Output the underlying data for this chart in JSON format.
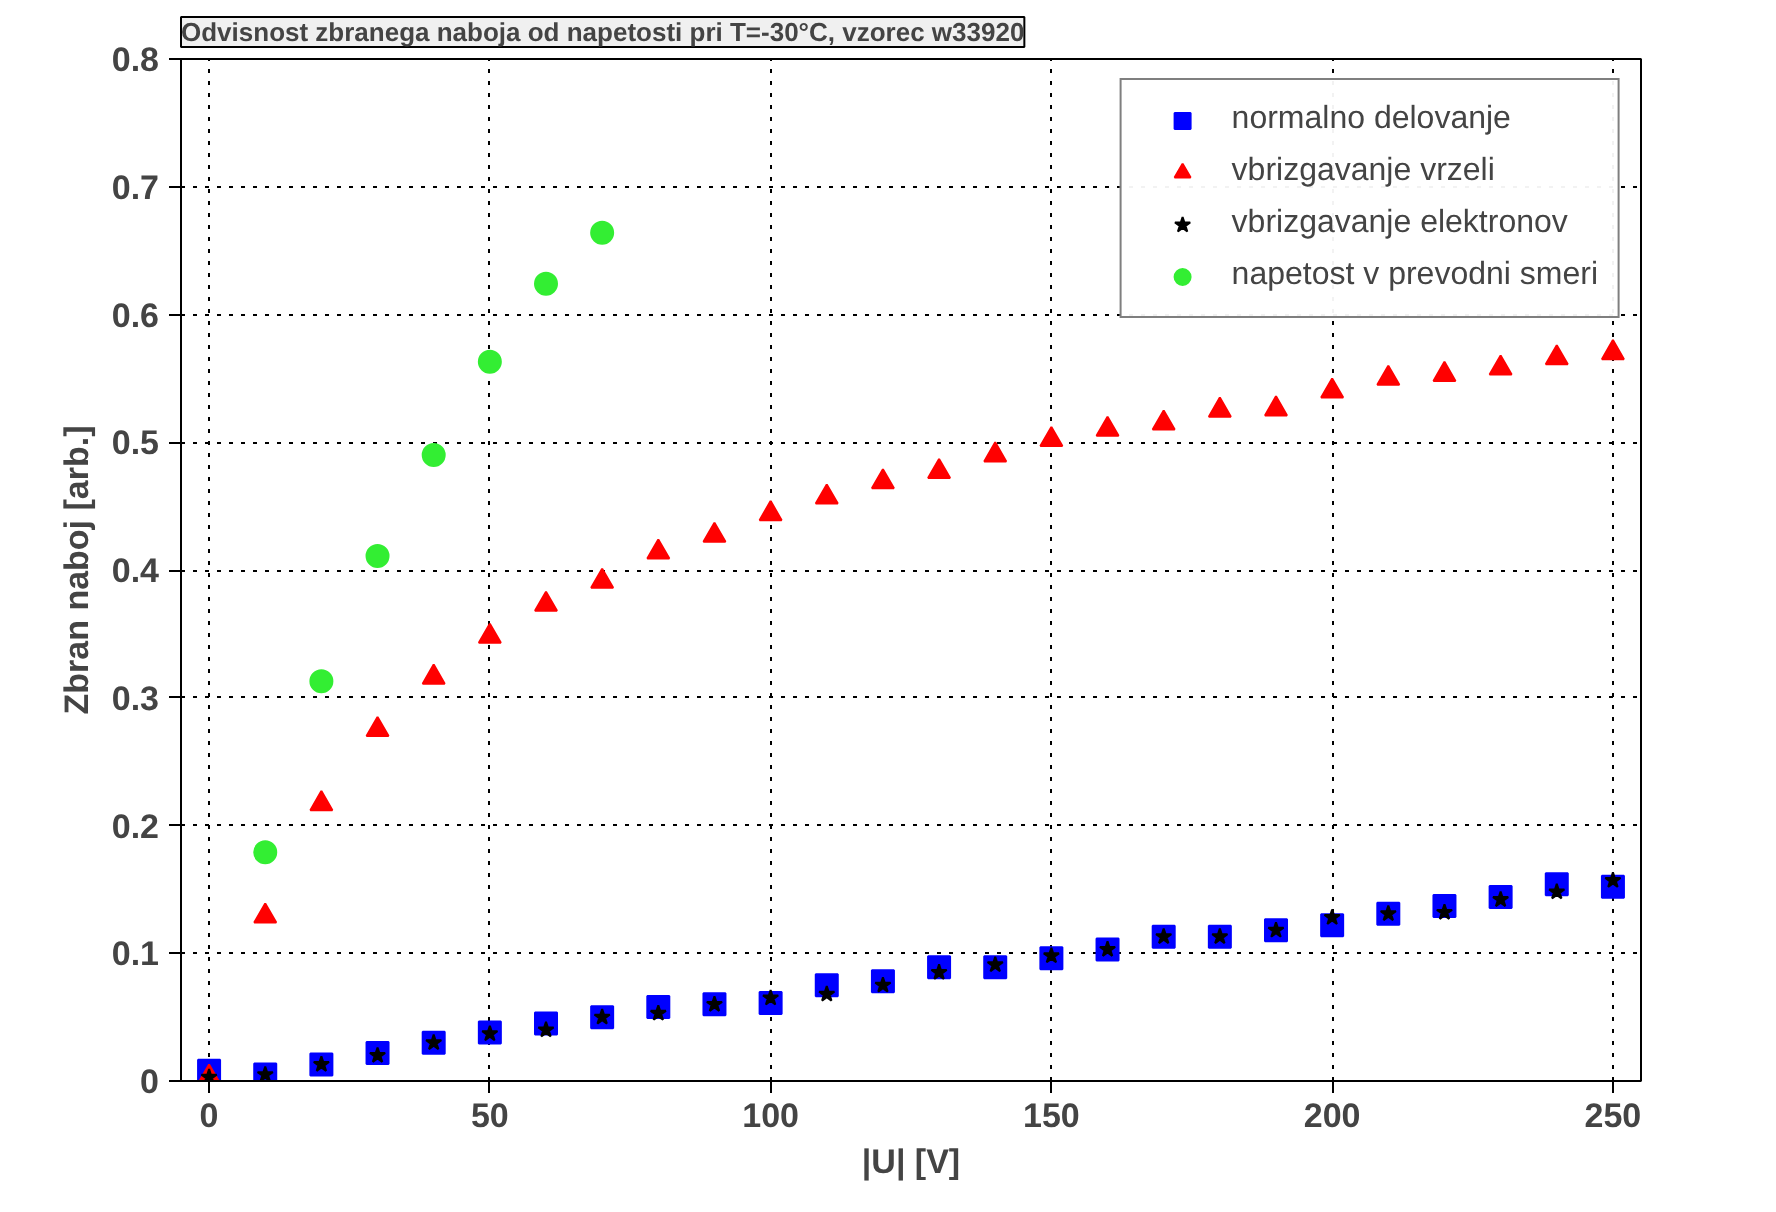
{
  "chart_data": {
    "type": "scatter",
    "title": "Odvisnost zbranega naboja od napetosti pri T=-30°C, vzorec w33920",
    "xlabel": "|U| [V]",
    "ylabel": "Zbran naboj [arb.]",
    "x": [
      0,
      10,
      20,
      30,
      40,
      50,
      60,
      70,
      80,
      90,
      100,
      110,
      120,
      130,
      140,
      150,
      160,
      170,
      180,
      190,
      200,
      210,
      220,
      230,
      240,
      250
    ],
    "series": [
      {
        "name": "normalno delovanje",
        "color": "#0000ff",
        "marker": "square",
        "values": [
          0.008,
          0.005,
          0.013,
          0.022,
          0.03,
          0.038,
          0.045,
          0.05,
          0.058,
          0.06,
          0.061,
          0.075,
          0.078,
          0.089,
          0.089,
          0.096,
          0.103,
          0.113,
          0.113,
          0.118,
          0.122,
          0.131,
          0.137,
          0.144,
          0.154,
          0.152
        ]
      },
      {
        "name": "vbrizgavanje vrzeli",
        "color": "#ff0000",
        "marker": "triangle",
        "values": [
          0.003,
          0.129,
          0.217,
          0.275,
          0.316,
          0.348,
          0.373,
          0.391,
          0.414,
          0.427,
          0.444,
          0.457,
          0.469,
          0.477,
          0.49,
          0.502,
          0.51,
          0.515,
          0.525,
          0.526,
          0.54,
          0.55,
          0.553,
          0.558,
          0.566,
          0.57
        ]
      },
      {
        "name": "vbrizgavanje elektronov",
        "color": "#000000",
        "marker": "star",
        "values": [
          0.003,
          0.005,
          0.013,
          0.02,
          0.03,
          0.037,
          0.04,
          0.05,
          0.053,
          0.06,
          0.065,
          0.068,
          0.075,
          0.085,
          0.091,
          0.098,
          0.103,
          0.113,
          0.113,
          0.118,
          0.128,
          0.131,
          0.132,
          0.142,
          0.148,
          0.157
        ]
      },
      {
        "name": "napetost v prevodni smeri",
        "color": "#33ee33",
        "marker": "circle",
        "x": [
          10,
          20,
          30,
          40,
          50,
          60,
          70
        ],
        "values": [
          0.179,
          0.313,
          0.411,
          0.49,
          0.563,
          0.624,
          0.664
        ]
      }
    ],
    "xlim": [
      -5,
      255
    ],
    "ylim": [
      0,
      0.8
    ],
    "xticks": [
      0,
      50,
      100,
      150,
      200,
      250
    ],
    "yticks": [
      0,
      0.1,
      0.2,
      0.3,
      0.4,
      0.5,
      0.6,
      0.7,
      0.8
    ],
    "grid": true,
    "legend": "top right"
  }
}
